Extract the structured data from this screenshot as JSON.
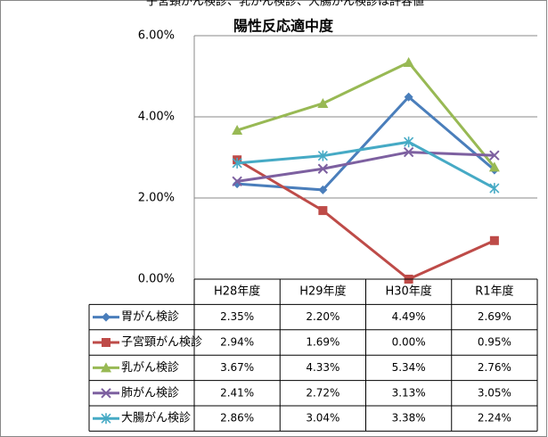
{
  "caption": "子宮頸がん検診、乳がん検診、大腸がん検診は許容値",
  "chart_data": {
    "type": "line",
    "title": "陽性反応適中度",
    "categories": [
      "H28年度",
      "H29年度",
      "H30年度",
      "R1年度"
    ],
    "ylim": [
      0,
      6
    ],
    "yticks": [
      {
        "value": 0,
        "label": "0.00%"
      },
      {
        "value": 2,
        "label": "2.00%"
      },
      {
        "value": 4,
        "label": "4.00%"
      },
      {
        "value": 6,
        "label": "6.00%"
      }
    ],
    "series": [
      {
        "name": "胃がん検診",
        "color": "#4a7ebb",
        "marker": "diamond",
        "values": [
          2.35,
          2.2,
          4.49,
          2.69
        ],
        "value_labels": [
          "2.35%",
          "2.20%",
          "4.49%",
          "2.69%"
        ]
      },
      {
        "name": "子宮頸がん検診",
        "color": "#be4b48",
        "marker": "square",
        "values": [
          2.94,
          1.69,
          0.0,
          0.95
        ],
        "value_labels": [
          "2.94%",
          "1.69%",
          "0.00%",
          "0.95%"
        ]
      },
      {
        "name": "乳がん検診",
        "color": "#98b954",
        "marker": "triangle",
        "values": [
          3.67,
          4.33,
          5.34,
          2.76
        ],
        "value_labels": [
          "3.67%",
          "4.33%",
          "5.34%",
          "2.76%"
        ]
      },
      {
        "name": "肺がん検診",
        "color": "#7d60a0",
        "marker": "x",
        "values": [
          2.41,
          2.72,
          3.13,
          3.05
        ],
        "value_labels": [
          "2.41%",
          "2.72%",
          "3.13%",
          "3.05%"
        ]
      },
      {
        "name": "大腸がん検診",
        "color": "#46aac5",
        "marker": "star",
        "values": [
          2.86,
          3.04,
          3.38,
          2.24
        ],
        "value_labels": [
          "2.86%",
          "3.04%",
          "3.38%",
          "2.24%"
        ]
      }
    ]
  }
}
